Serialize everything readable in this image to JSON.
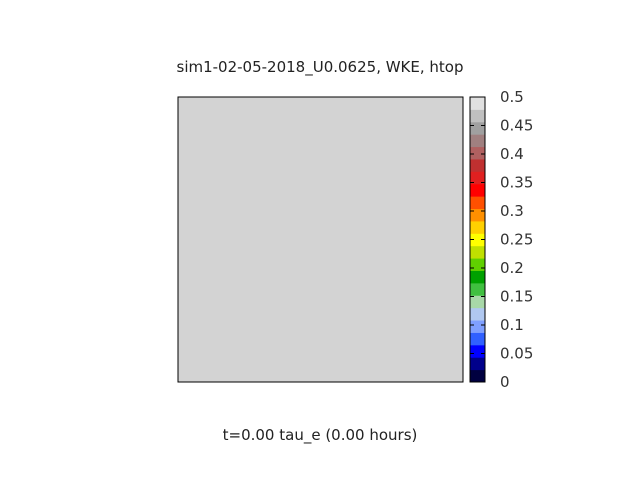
{
  "chart_data": {
    "type": "heatmap",
    "title": "sim1-02-05-2018_U0.0625, WKE, htop",
    "caption": "t=0.00 tau_e (0.00 hours)",
    "field_color": "#d3d3d3",
    "field_value_approx": 0.5,
    "colorbar": {
      "range": [
        0,
        0.5
      ],
      "ticks": [
        "0",
        "0.05",
        "0.1",
        "0.15",
        "0.2",
        "0.25",
        "0.3",
        "0.35",
        "0.4",
        "0.45",
        "0.5"
      ],
      "colors": [
        "#000040",
        "#00008b",
        "#0000ff",
        "#3060ff",
        "#7f9fff",
        "#b0c8f0",
        "#a8d8a8",
        "#40c040",
        "#00a000",
        "#60d000",
        "#c0e000",
        "#ffff00",
        "#ffd000",
        "#ff9000",
        "#ff5000",
        "#ff0000",
        "#e02020",
        "#c03030",
        "#b06060",
        "#a08080",
        "#a0a0a0",
        "#c0c0c0",
        "#e0e0e0"
      ]
    }
  }
}
